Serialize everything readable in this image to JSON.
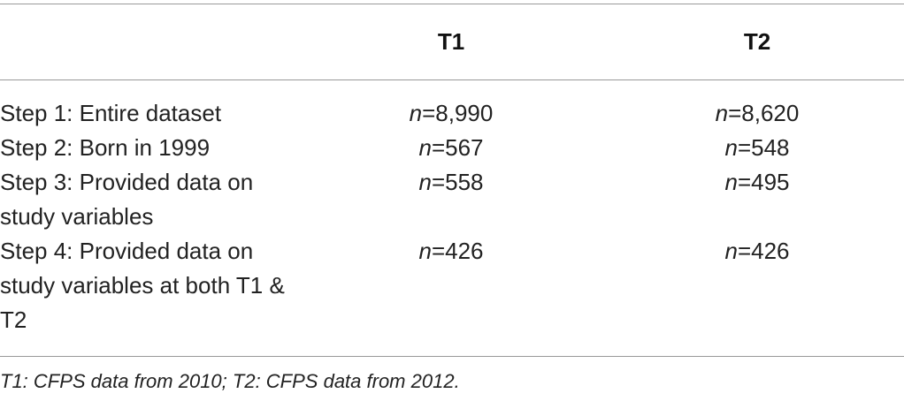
{
  "table": {
    "header": [
      "",
      "T1",
      "T2"
    ],
    "rows": [
      [
        "Step 1: Entire dataset",
        {
          "symbol": "n",
          "text": "=8,990"
        },
        {
          "symbol": "n",
          "text": "=8,620"
        }
      ],
      [
        "Step 2: Born in 1999",
        {
          "symbol": "n",
          "text": "=567"
        },
        {
          "symbol": "n",
          "text": "=548"
        }
      ],
      [
        "Step 3: Provided data on study variables",
        {
          "symbol": "n",
          "text": "=558"
        },
        {
          "symbol": "n",
          "text": "=495"
        }
      ],
      [
        "Step 4: Provided data on study variables at both T1 & T2",
        {
          "symbol": "n",
          "text": "=426"
        },
        {
          "symbol": "n",
          "text": "=426"
        }
      ]
    ],
    "footnote": "T1: CFPS data from 2010; T2: CFPS data from 2012."
  }
}
